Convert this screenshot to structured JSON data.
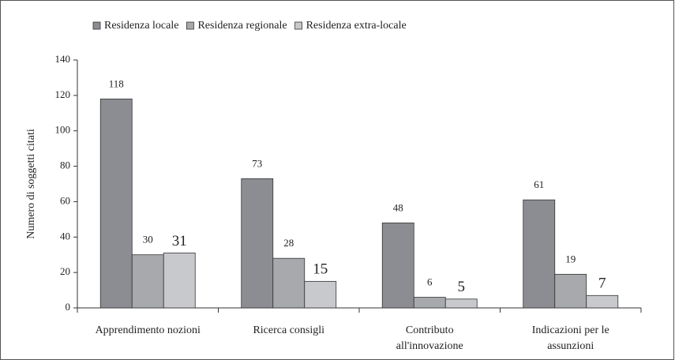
{
  "chart_data": {
    "type": "bar",
    "ylabel": "Numero di soggetti citati",
    "categories": [
      "Apprendimento nozioni",
      "Ricerca consigli",
      "Contributo all'innovazione",
      "Indicazioni per le assunzioni"
    ],
    "series": [
      {
        "name": "Residenza locale",
        "color": "#8b8d92",
        "values": [
          118,
          73,
          48,
          61
        ]
      },
      {
        "name": "Residenza regionale",
        "color": "#a7a9ac",
        "values": [
          30,
          28,
          6,
          19
        ]
      },
      {
        "name": "Residenza extra-locale",
        "color": "#c8c9cc",
        "values": [
          31,
          15,
          5,
          7
        ]
      }
    ],
    "ylim": [
      0,
      140
    ],
    "yticks": [
      0,
      20,
      40,
      60,
      80,
      100,
      120,
      140
    ],
    "legend": "top"
  }
}
